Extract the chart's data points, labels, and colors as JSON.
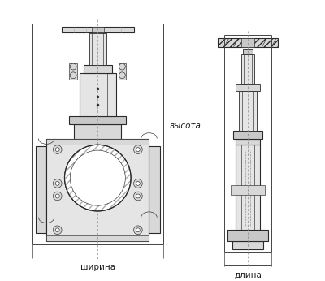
{
  "bg_color": "#ffffff",
  "line_color": "#2a2a2a",
  "gray1": "#c8c8c8",
  "gray2": "#d8d8d8",
  "gray3": "#e5e5e5",
  "gray4": "#b0b0b0",
  "dim_color": "#444444",
  "dash_color": "#888888",
  "text_color": "#1a1a1a",
  "label_shirina": "ширина",
  "label_dlina": "длина",
  "label_vysota": "высота",
  "fig_width": 4.0,
  "fig_height": 3.46,
  "dpi": 100
}
